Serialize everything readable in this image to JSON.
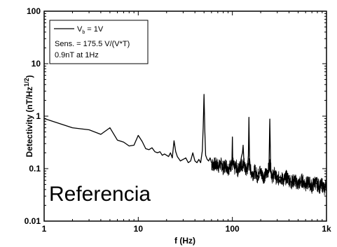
{
  "chart_data": {
    "type": "line",
    "xscale": "log",
    "yscale": "log",
    "xlim": [
      1,
      1000
    ],
    "ylim": [
      0.01,
      100
    ],
    "xlabel": "f (Hz)",
    "ylabel": "Detectivity (nT/Hz^(1/2))",
    "ylabel_main": "Detectivity (nT/Hz",
    "ylabel_sup": "1/2",
    "ylabel_close": ")",
    "x_ticks": [
      {
        "value": 1,
        "label": "1"
      },
      {
        "value": 10,
        "label": "10"
      },
      {
        "value": 100,
        "label": "100"
      },
      {
        "value": 1000,
        "label": "1k"
      }
    ],
    "y_ticks": [
      {
        "value": 0.01,
        "label": "0.01"
      },
      {
        "value": 0.1,
        "label": "0.1"
      },
      {
        "value": 1,
        "label": "1"
      },
      {
        "value": 10,
        "label": "10"
      },
      {
        "value": 100,
        "label": "100"
      }
    ],
    "grid": false,
    "legend": {
      "placement": "top-left",
      "series_label_main": "V",
      "series_label_sub": "b",
      "series_label_rest": " = 1V",
      "lines": [
        "Sens. = 175.5 V/(V*T)",
        "0.9nT at 1Hz"
      ]
    },
    "annotation": "Referencia",
    "series": [
      {
        "color": "#000000",
        "points": [
          [
            1,
            0.9
          ],
          [
            2,
            0.6
          ],
          [
            3,
            0.55
          ],
          [
            4,
            0.45
          ],
          [
            5,
            0.6
          ],
          [
            6,
            0.35
          ],
          [
            7,
            0.32
          ],
          [
            8,
            0.27
          ],
          [
            9,
            0.28
          ],
          [
            10,
            0.43
          ],
          [
            11,
            0.33
          ],
          [
            12,
            0.24
          ],
          [
            13,
            0.23
          ],
          [
            14,
            0.25
          ],
          [
            15,
            0.21
          ],
          [
            16,
            0.2
          ],
          [
            17,
            0.21
          ],
          [
            18,
            0.18
          ],
          [
            19,
            0.19
          ],
          [
            20,
            0.18
          ],
          [
            21,
            0.17
          ],
          [
            22,
            0.2
          ],
          [
            23,
            0.16
          ],
          [
            24,
            0.34
          ],
          [
            25,
            0.21
          ],
          [
            26,
            0.17
          ],
          [
            28,
            0.14
          ],
          [
            30,
            0.15
          ],
          [
            32,
            0.16
          ],
          [
            34,
            0.13
          ],
          [
            36,
            0.14
          ],
          [
            38,
            0.2
          ],
          [
            40,
            0.14
          ],
          [
            42,
            0.13
          ],
          [
            44,
            0.15
          ],
          [
            46,
            0.13
          ],
          [
            48,
            0.22
          ],
          [
            49,
            0.6
          ],
          [
            50,
            2.6
          ],
          [
            51,
            0.5
          ],
          [
            52,
            0.18
          ],
          [
            54,
            0.15
          ],
          [
            56,
            0.14
          ],
          [
            58,
            0.16
          ],
          [
            60,
            0.13
          ],
          [
            62,
            0.12
          ],
          [
            65,
            0.14
          ],
          [
            68,
            0.12
          ],
          [
            72,
            0.11
          ],
          [
            76,
            0.13
          ],
          [
            80,
            0.1
          ],
          [
            85,
            0.12
          ],
          [
            90,
            0.1
          ],
          [
            95,
            0.11
          ],
          [
            99,
            0.15
          ],
          [
            100,
            0.4
          ],
          [
            101,
            0.13
          ],
          [
            105,
            0.1
          ],
          [
            110,
            0.11
          ],
          [
            115,
            0.09
          ],
          [
            120,
            0.11
          ],
          [
            125,
            0.17
          ],
          [
            128,
            0.2
          ],
          [
            130,
            0.28
          ],
          [
            132,
            0.16
          ],
          [
            136,
            0.1
          ],
          [
            140,
            0.09
          ],
          [
            145,
            0.1
          ],
          [
            148,
            0.18
          ],
          [
            150,
            0.95
          ],
          [
            152,
            0.16
          ],
          [
            156,
            0.09
          ],
          [
            165,
            0.08
          ],
          [
            175,
            0.09
          ],
          [
            185,
            0.07
          ],
          [
            195,
            0.09
          ],
          [
            205,
            0.08
          ],
          [
            215,
            0.07
          ],
          [
            230,
            0.08
          ],
          [
            245,
            0.1
          ],
          [
            250,
            0.88
          ],
          [
            255,
            0.1
          ],
          [
            265,
            0.07
          ],
          [
            280,
            0.08
          ],
          [
            300,
            0.06
          ],
          [
            320,
            0.07
          ],
          [
            350,
            0.06
          ],
          [
            380,
            0.07
          ],
          [
            420,
            0.055
          ],
          [
            460,
            0.06
          ],
          [
            500,
            0.05
          ],
          [
            550,
            0.06
          ],
          [
            600,
            0.05
          ],
          [
            650,
            0.055
          ],
          [
            700,
            0.045
          ],
          [
            750,
            0.055
          ],
          [
            800,
            0.05
          ],
          [
            850,
            0.045
          ],
          [
            900,
            0.05
          ],
          [
            950,
            0.04
          ],
          [
            1000,
            0.055
          ]
        ]
      }
    ]
  }
}
